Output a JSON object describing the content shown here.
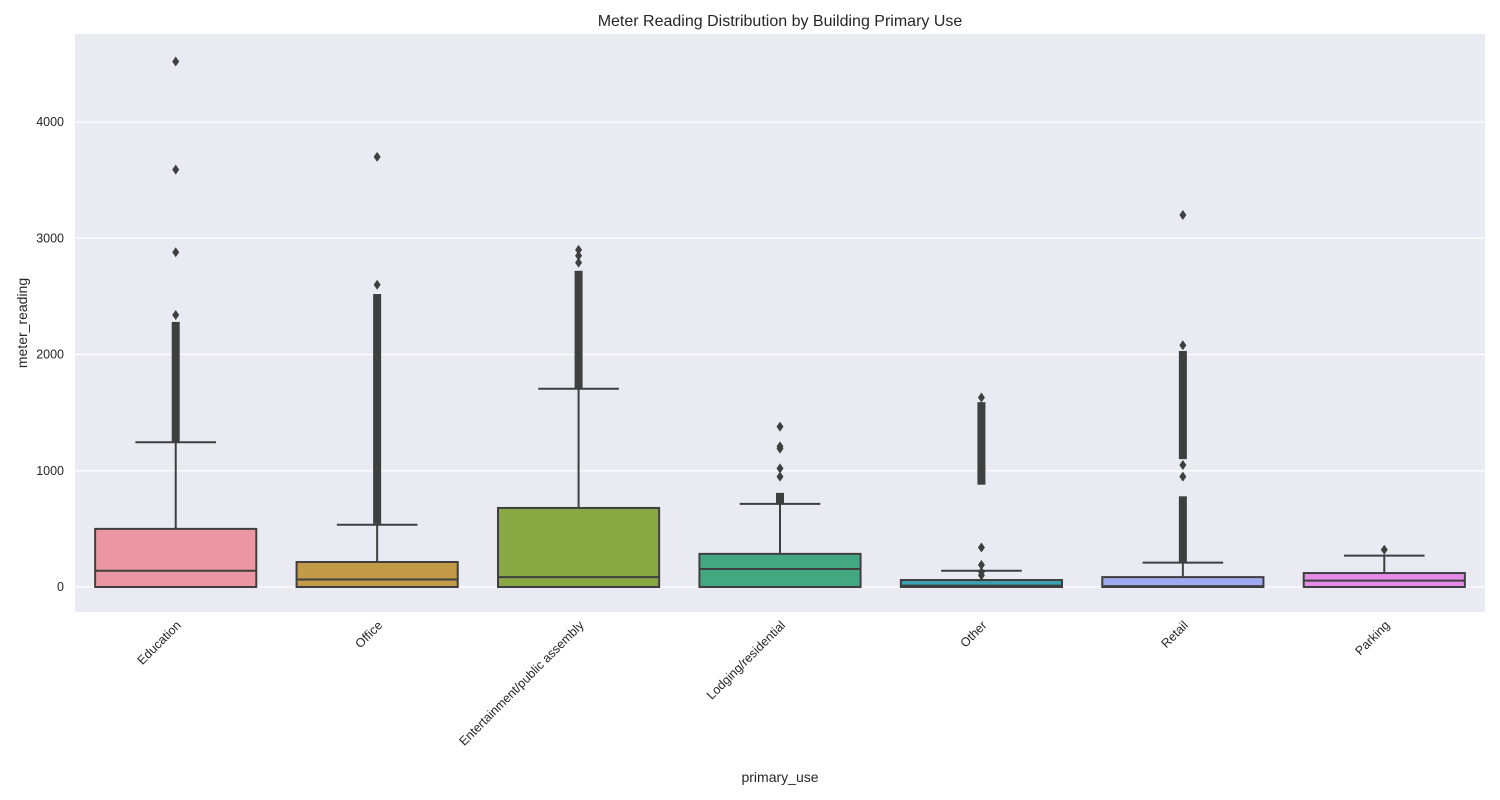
{
  "chart_data": {
    "type": "box",
    "title": "Meter Reading Distribution by Building Primary Use",
    "xlabel": "primary_use",
    "ylabel": "meter_reading",
    "ylim": [
      -220,
      4720
    ],
    "yticks": [
      0,
      1000,
      2000,
      3000,
      4000
    ],
    "grid": true,
    "legend": "none",
    "categories": [
      "Education",
      "Office",
      "Entertainment/public assembly",
      "Lodging/residential",
      "Other",
      "Retail",
      "Parking"
    ],
    "colors": [
      "#ea96a3",
      "#c39b48",
      "#88a844",
      "#43a882",
      "#3aa1b1",
      "#a0a8f0",
      "#e58ce8"
    ],
    "boxes": [
      {
        "whisker_low": 0,
        "q1": 0,
        "median": 140,
        "q3": 500,
        "whisker_high": 1245,
        "outlier_band": [
          1245,
          2280
        ],
        "outliers": [
          2340,
          2880,
          3590,
          4520
        ]
      },
      {
        "whisker_low": 0,
        "q1": 0,
        "median": 65,
        "q3": 215,
        "whisker_high": 535,
        "outlier_band": [
          535,
          2520
        ],
        "outliers": [
          2600,
          3700
        ]
      },
      {
        "whisker_low": 0,
        "q1": 0,
        "median": 85,
        "q3": 680,
        "whisker_high": 1705,
        "outlier_band": [
          1705,
          2720
        ],
        "outliers": [
          2790,
          2850,
          2900
        ]
      },
      {
        "whisker_low": 0,
        "q1": 0,
        "median": 155,
        "q3": 285,
        "whisker_high": 715,
        "outlier_band": [
          715,
          810
        ],
        "outliers": [
          950,
          1020,
          1190,
          1210,
          1380
        ]
      },
      {
        "whisker_low": 0,
        "q1": 0,
        "median": 12,
        "q3": 60,
        "whisker_high": 140,
        "outlier_band": [
          880,
          1590
        ],
        "outliers": [
          100,
          130,
          190,
          340,
          1630
        ]
      },
      {
        "whisker_low": 0,
        "q1": 0,
        "median": 8,
        "q3": 85,
        "whisker_high": 210,
        "outlier_band": [
          210,
          780
        ],
        "outliers": [
          950,
          1050,
          2080,
          3200
        ],
        "outlier_band_2": [
          1100,
          2030
        ]
      },
      {
        "whisker_low": 0,
        "q1": 0,
        "median": 55,
        "q3": 120,
        "whisker_high": 270,
        "outlier_band": null,
        "outliers": [
          320
        ]
      }
    ]
  }
}
